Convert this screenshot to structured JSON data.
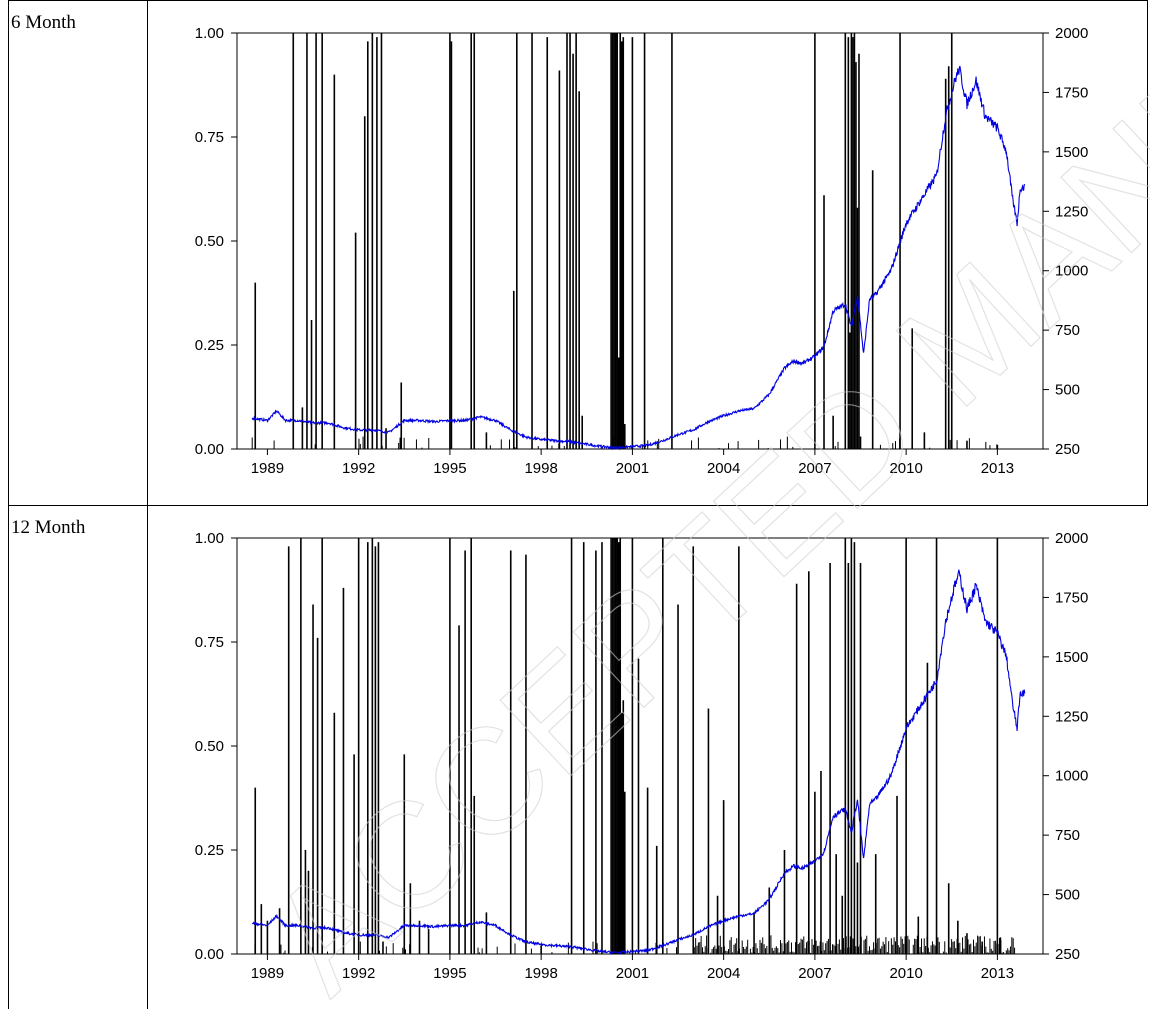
{
  "rows": [
    {
      "label": "6 Month"
    },
    {
      "label": "12 Month"
    }
  ],
  "watermark": "ACCEPTED MANUSCRIPT",
  "colors": {
    "probability": "#000000",
    "price": "#0000e0",
    "watermark": "#cfcfcf"
  },
  "chart_data": [
    {
      "type": "line",
      "title": "6 Month",
      "xlim": [
        1988,
        2014.5
      ],
      "x_ticks": [
        "1989",
        "1992",
        "1995",
        "1998",
        "2001",
        "2004",
        "2007",
        "2010",
        "2013"
      ],
      "y_left_ticks": [
        "0.00",
        "0.25",
        "0.50",
        "0.75",
        "1.00"
      ],
      "y_right_ticks": [
        "250",
        "500",
        "750",
        "1000",
        "1250",
        "1500",
        "1750",
        "2000"
      ],
      "ylim_left": [
        0,
        1
      ],
      "ylim_right": [
        250,
        2000
      ],
      "series": [
        {
          "axis": "left",
          "type": "spikes",
          "x": [
            1988.6,
            1989.85,
            1990.15,
            1990.3,
            1990.45,
            1990.6,
            1990.8,
            1991.2,
            1991.9,
            1992.2,
            1992.3,
            1992.45,
            1992.6,
            1992.75,
            1992.9,
            1993.4,
            1995.0,
            1995.05,
            1995.7,
            1995.8,
            1996.2,
            1997.1,
            1997.2,
            1997.7,
            1998.2,
            1998.6,
            1998.85,
            1998.95,
            1999.05,
            1999.15,
            1999.25,
            1999.35,
            2000.3,
            2000.35,
            2000.4,
            2000.45,
            2000.5,
            2000.55,
            2000.6,
            2000.65,
            2000.7,
            2000.75,
            2001.0,
            2001.4,
            2002.3,
            2007.0,
            2007.3,
            2007.6,
            2008.0,
            2008.1,
            2008.15,
            2008.2,
            2008.25,
            2008.3,
            2008.35,
            2008.4,
            2008.45,
            2008.5,
            2008.9,
            2009.8,
            2010.2,
            2010.6,
            2011.3,
            2011.4,
            2011.5,
            2012.0,
            2013.0
          ],
          "values": [
            0.4,
            1.0,
            0.1,
            1.0,
            0.31,
            1.0,
            1.0,
            0.9,
            0.52,
            0.8,
            0.98,
            1.0,
            0.99,
            1.0,
            0.05,
            0.16,
            1.0,
            0.98,
            1.0,
            1.0,
            0.04,
            0.38,
            1.0,
            1.0,
            0.99,
            0.91,
            1.0,
            1.0,
            0.95,
            1.0,
            0.86,
            0.08,
            1.0,
            1.0,
            1.0,
            1.0,
            1.0,
            0.22,
            1.0,
            0.98,
            0.99,
            0.06,
            0.99,
            1.0,
            1.0,
            1.0,
            0.61,
            0.08,
            1.0,
            0.99,
            0.28,
            1.0,
            0.99,
            1.0,
            0.93,
            0.58,
            0.95,
            0.03,
            0.67,
            1.0,
            0.29,
            0.04,
            0.89,
            0.92,
            1.0,
            0.02,
            0.01
          ]
        },
        {
          "axis": "right",
          "type": "line",
          "x": [
            1988.5,
            1989.0,
            1989.3,
            1989.6,
            1990.0,
            1990.5,
            1991.0,
            1991.5,
            1992.0,
            1992.5,
            1993.0,
            1993.5,
            1994.0,
            1994.5,
            1995.0,
            1995.5,
            1996.0,
            1996.5,
            1997.0,
            1997.5,
            1998.0,
            1998.5,
            1999.0,
            1999.5,
            2000.0,
            2000.5,
            2001.0,
            2001.5,
            2002.0,
            2002.5,
            2003.0,
            2003.5,
            2004.0,
            2004.5,
            2005.0,
            2005.5,
            2006.0,
            2006.3,
            2006.6,
            2007.0,
            2007.3,
            2007.6,
            2008.0,
            2008.2,
            2008.4,
            2008.6,
            2008.8,
            2009.0,
            2009.5,
            2010.0,
            2010.5,
            2011.0,
            2011.3,
            2011.6,
            2011.75,
            2012.0,
            2012.3,
            2012.6,
            2013.0,
            2013.3,
            2013.5,
            2013.65,
            2013.75,
            2014.0
          ],
          "values": [
            380,
            370,
            410,
            370,
            370,
            360,
            360,
            340,
            330,
            330,
            320,
            370,
            370,
            365,
            370,
            370,
            385,
            370,
            330,
            300,
            290,
            285,
            280,
            270,
            260,
            255,
            260,
            265,
            285,
            310,
            330,
            365,
            390,
            410,
            420,
            480,
            590,
            620,
            610,
            640,
            680,
            830,
            860,
            760,
            900,
            650,
            880,
            900,
            1000,
            1200,
            1300,
            1400,
            1650,
            1800,
            1850,
            1700,
            1800,
            1650,
            1600,
            1500,
            1300,
            1200,
            1350,
            1350
          ]
        }
      ]
    },
    {
      "type": "line",
      "title": "12 Month",
      "xlim": [
        1988,
        2014.5
      ],
      "x_ticks": [
        "1989",
        "1992",
        "1995",
        "1998",
        "2001",
        "2004",
        "2007",
        "2010",
        "2013"
      ],
      "y_left_ticks": [
        "0.00",
        "0.25",
        "0.50",
        "0.75",
        "1.00"
      ],
      "y_right_ticks": [
        "250",
        "500",
        "750",
        "1000",
        "1250",
        "1500",
        "1750",
        "2000"
      ],
      "ylim_left": [
        0,
        1
      ],
      "ylim_right": [
        250,
        2000
      ],
      "series": [
        {
          "axis": "left",
          "type": "spikes",
          "x": [
            1988.6,
            1988.8,
            1989.0,
            1989.4,
            1989.7,
            1990.1,
            1990.25,
            1990.35,
            1990.5,
            1990.65,
            1990.8,
            1991.2,
            1991.5,
            1991.85,
            1992.0,
            1992.3,
            1992.45,
            1992.55,
            1992.65,
            1992.8,
            1993.5,
            1993.7,
            1994.0,
            1994.3,
            1995.0,
            1995.3,
            1995.5,
            1995.7,
            1995.8,
            1996.2,
            1997.0,
            1997.5,
            1998.0,
            1999.0,
            1999.4,
            1999.8,
            2000.0,
            2000.3,
            2000.35,
            2000.4,
            2000.45,
            2000.5,
            2000.55,
            2000.6,
            2000.65,
            2000.7,
            2000.75,
            2001.0,
            2001.2,
            2001.5,
            2001.8,
            2002.0,
            2002.5,
            2003.0,
            2003.5,
            2003.8,
            2004.0,
            2004.5,
            2005.0,
            2005.5,
            2006.0,
            2006.4,
            2006.8,
            2007.0,
            2007.2,
            2007.5,
            2007.7,
            2007.9,
            2008.0,
            2008.1,
            2008.2,
            2008.3,
            2008.4,
            2008.5,
            2009.0,
            2009.7,
            2010.0,
            2010.4,
            2010.7,
            2011.0,
            2011.4,
            2011.7,
            2012.0,
            2012.5,
            2013.0,
            2013.1
          ],
          "values": [
            0.4,
            0.12,
            0.08,
            0.11,
            0.98,
            1.0,
            0.25,
            0.2,
            0.84,
            0.76,
            1.0,
            0.58,
            0.88,
            0.48,
            1.0,
            0.99,
            1.0,
            0.98,
            0.99,
            0.03,
            0.48,
            0.17,
            0.08,
            0.06,
            1.0,
            0.79,
            0.97,
            1.0,
            0.38,
            0.1,
            0.97,
            0.96,
            0.02,
            1.0,
            0.99,
            0.97,
            0.99,
            1.0,
            1.0,
            1.0,
            1.0,
            1.0,
            0.99,
            1.0,
            0.58,
            0.61,
            0.39,
            1.0,
            0.71,
            0.4,
            0.26,
            1.0,
            0.84,
            0.98,
            0.59,
            0.14,
            0.37,
            0.98,
            0.1,
            0.16,
            0.25,
            0.89,
            0.92,
            0.39,
            0.44,
            0.94,
            0.24,
            0.14,
            1.0,
            0.94,
            1.0,
            0.99,
            0.22,
            0.94,
            0.24,
            0.38,
            1.0,
            0.09,
            0.7,
            1.0,
            0.17,
            0.08,
            0.05,
            0.03,
            1.0,
            0.04
          ],
          "noise_from": 2003.0
        },
        {
          "axis": "right",
          "type": "line",
          "x": [
            1988.5,
            1989.0,
            1989.3,
            1989.6,
            1990.0,
            1990.5,
            1991.0,
            1991.5,
            1992.0,
            1992.5,
            1993.0,
            1993.5,
            1994.0,
            1994.5,
            1995.0,
            1995.5,
            1996.0,
            1996.5,
            1997.0,
            1997.5,
            1998.0,
            1998.5,
            1999.0,
            1999.5,
            2000.0,
            2000.5,
            2001.0,
            2001.5,
            2002.0,
            2002.5,
            2003.0,
            2003.5,
            2004.0,
            2004.5,
            2005.0,
            2005.5,
            2006.0,
            2006.3,
            2006.6,
            2007.0,
            2007.3,
            2007.6,
            2008.0,
            2008.2,
            2008.4,
            2008.6,
            2008.8,
            2009.0,
            2009.5,
            2010.0,
            2010.5,
            2011.0,
            2011.3,
            2011.6,
            2011.75,
            2012.0,
            2012.3,
            2012.6,
            2013.0,
            2013.3,
            2013.5,
            2013.65,
            2013.75,
            2014.0
          ],
          "values": [
            380,
            370,
            410,
            370,
            370,
            360,
            360,
            340,
            330,
            330,
            320,
            370,
            370,
            365,
            370,
            370,
            385,
            370,
            330,
            300,
            290,
            285,
            280,
            270,
            260,
            255,
            260,
            265,
            285,
            310,
            330,
            365,
            390,
            410,
            420,
            480,
            590,
            620,
            610,
            640,
            680,
            830,
            860,
            760,
            900,
            650,
            880,
            900,
            1000,
            1200,
            1300,
            1400,
            1650,
            1800,
            1850,
            1700,
            1800,
            1650,
            1600,
            1500,
            1300,
            1200,
            1350,
            1350
          ]
        }
      ]
    }
  ]
}
